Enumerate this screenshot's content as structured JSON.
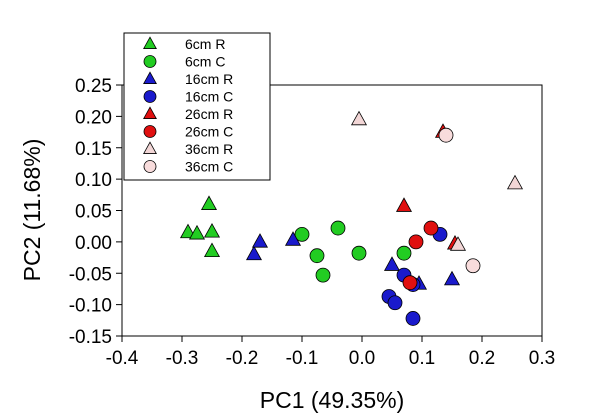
{
  "chart_data": {
    "type": "scatter",
    "title": "",
    "xlabel": "PC1 (49.35%)",
    "ylabel": "PC2 (11.68%)",
    "xlim": [
      -0.4,
      0.3
    ],
    "ylim": [
      -0.15,
      0.25
    ],
    "x_ticks": [
      "-0.4",
      "-0.3",
      "-0.2",
      "-0.1",
      "0.0",
      "0.1",
      "0.2",
      "0.3"
    ],
    "y_ticks": [
      "-0.15",
      "-0.10",
      "-0.05",
      "0.00",
      "0.05",
      "0.10",
      "0.15",
      "0.20",
      "0.25"
    ],
    "grid": false,
    "legend_position": "top-left",
    "series": [
      {
        "name": "6cm R",
        "marker": "triangle",
        "color": "#22cc22",
        "points": [
          [
            -0.29,
            0.015
          ],
          [
            -0.275,
            0.013
          ],
          [
            -0.255,
            0.06
          ],
          [
            -0.25,
            0.016
          ],
          [
            -0.25,
            -0.015
          ]
        ]
      },
      {
        "name": "6cm C",
        "marker": "circle",
        "color": "#22cc22",
        "points": [
          [
            -0.1,
            0.012
          ],
          [
            -0.075,
            -0.022
          ],
          [
            -0.065,
            -0.053
          ],
          [
            -0.04,
            0.022
          ],
          [
            -0.005,
            -0.018
          ],
          [
            0.07,
            -0.018
          ]
        ]
      },
      {
        "name": "16cm R",
        "marker": "triangle",
        "color": "#1a1acc",
        "points": [
          [
            -0.18,
            -0.02
          ],
          [
            -0.17,
            0.0
          ],
          [
            -0.115,
            0.003
          ],
          [
            0.05,
            -0.037
          ],
          [
            0.095,
            -0.067
          ],
          [
            0.15,
            -0.06
          ]
        ]
      },
      {
        "name": "16cm C",
        "marker": "circle",
        "color": "#1a1acc",
        "points": [
          [
            0.045,
            -0.087
          ],
          [
            0.055,
            -0.097
          ],
          [
            0.07,
            -0.053
          ],
          [
            0.085,
            -0.068
          ],
          [
            0.085,
            -0.122
          ],
          [
            0.13,
            0.012
          ]
        ]
      },
      {
        "name": "26cm R",
        "marker": "triangle",
        "color": "#e01010",
        "points": [
          [
            0.07,
            0.057
          ],
          [
            0.135,
            0.175
          ],
          [
            0.155,
            -0.003
          ]
        ]
      },
      {
        "name": "26cm C",
        "marker": "circle",
        "color": "#e01010",
        "points": [
          [
            0.08,
            -0.065
          ],
          [
            0.09,
            0.0
          ],
          [
            0.115,
            0.022
          ]
        ]
      },
      {
        "name": "36cm R",
        "marker": "triangle",
        "color": "#f2d6d6",
        "points": [
          [
            -0.005,
            0.195
          ],
          [
            0.16,
            -0.005
          ],
          [
            0.255,
            0.093
          ]
        ]
      },
      {
        "name": "36cm C",
        "marker": "circle",
        "color": "#f8dcdc",
        "points": [
          [
            0.14,
            0.17
          ],
          [
            0.185,
            -0.038
          ]
        ]
      }
    ]
  }
}
